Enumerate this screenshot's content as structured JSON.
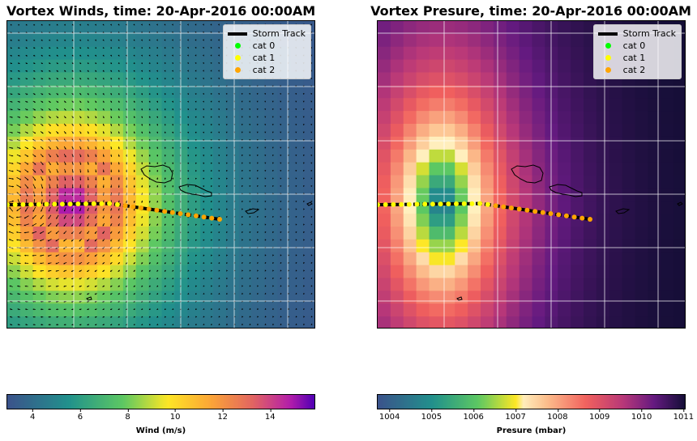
{
  "chart_data": [
    {
      "type": "heatmap",
      "title": "Vortex Winds, time: 20-Apr-2016 00:00AM",
      "colormap": "plasma (reversed)",
      "colorbar": {
        "label": "Wind (m/s)",
        "range": [
          2.9,
          15.9
        ],
        "ticks": [
          "4",
          "6",
          "8",
          "10",
          "12",
          "14"
        ],
        "tick_values": [
          4,
          6,
          8,
          10,
          12,
          14
        ]
      },
      "vectors": "wind arrows",
      "legend": {
        "placement": "top-right",
        "entries": [
          "Storm Track",
          "cat 0",
          "cat 1",
          "cat 2"
        ]
      },
      "grid": true,
      "storm_track_category": [
        1,
        1,
        1,
        1,
        1,
        1,
        1,
        1,
        1,
        1,
        1,
        1,
        1,
        1,
        1,
        2,
        2,
        2,
        2,
        2,
        2,
        2,
        2,
        2,
        2,
        2,
        2,
        2
      ]
    },
    {
      "type": "heatmap",
      "title": "Vortex Presure, time: 20-Apr-2016 00:00AM",
      "colormap": "magma",
      "colorbar": {
        "label": "Presure (mbar)",
        "range": [
          1003.7,
          1011.05
        ],
        "ticks": [
          "1004",
          "1005",
          "1006",
          "1007",
          "1008",
          "1009",
          "1010",
          "1011"
        ],
        "tick_values": [
          1004,
          1005,
          1006,
          1007,
          1008,
          1009,
          1010,
          1011
        ]
      },
      "legend": {
        "placement": "top-right",
        "entries": [
          "Storm Track",
          "cat 0",
          "cat 1",
          "cat 2"
        ]
      },
      "grid": true,
      "storm_track_category": [
        1,
        1,
        1,
        1,
        1,
        1,
        1,
        1,
        1,
        1,
        1,
        1,
        1,
        1,
        1,
        2,
        2,
        2,
        2,
        2,
        2,
        2,
        2,
        2,
        2,
        2,
        2,
        2
      ]
    }
  ],
  "colors": {
    "storm_track": "#000000",
    "cat_0": "#00ff00",
    "cat_1": "#ffff00",
    "cat_2": "#ffa500",
    "coast": "#000000"
  }
}
